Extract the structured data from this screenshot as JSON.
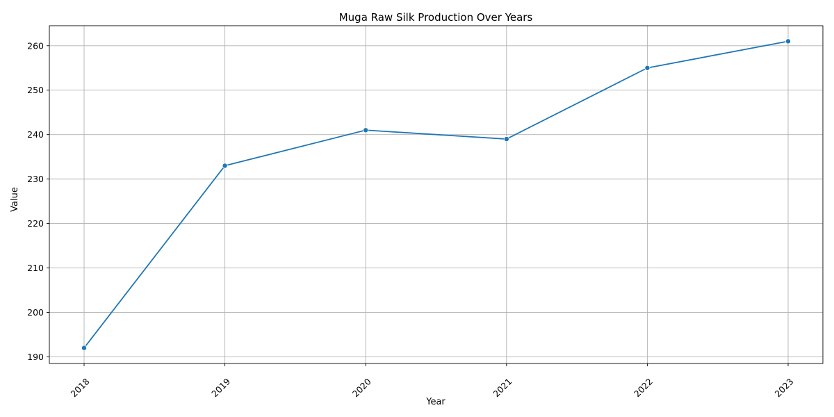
{
  "chart_data": {
    "type": "line",
    "title": "Muga Raw Silk Production Over Years",
    "xlabel": "Year",
    "ylabel": "Value",
    "x": [
      "2018",
      "2019",
      "2020",
      "2021",
      "2022",
      "2023"
    ],
    "series": [
      {
        "values": [
          192,
          233,
          241,
          239,
          255,
          261
        ],
        "color": "#1f77b4",
        "marker": "circle"
      }
    ],
    "yticks": [
      190,
      200,
      210,
      220,
      230,
      240,
      250,
      260
    ],
    "ylim": [
      188.5,
      264.5
    ],
    "grid": true,
    "xtick_rotation": 45
  }
}
